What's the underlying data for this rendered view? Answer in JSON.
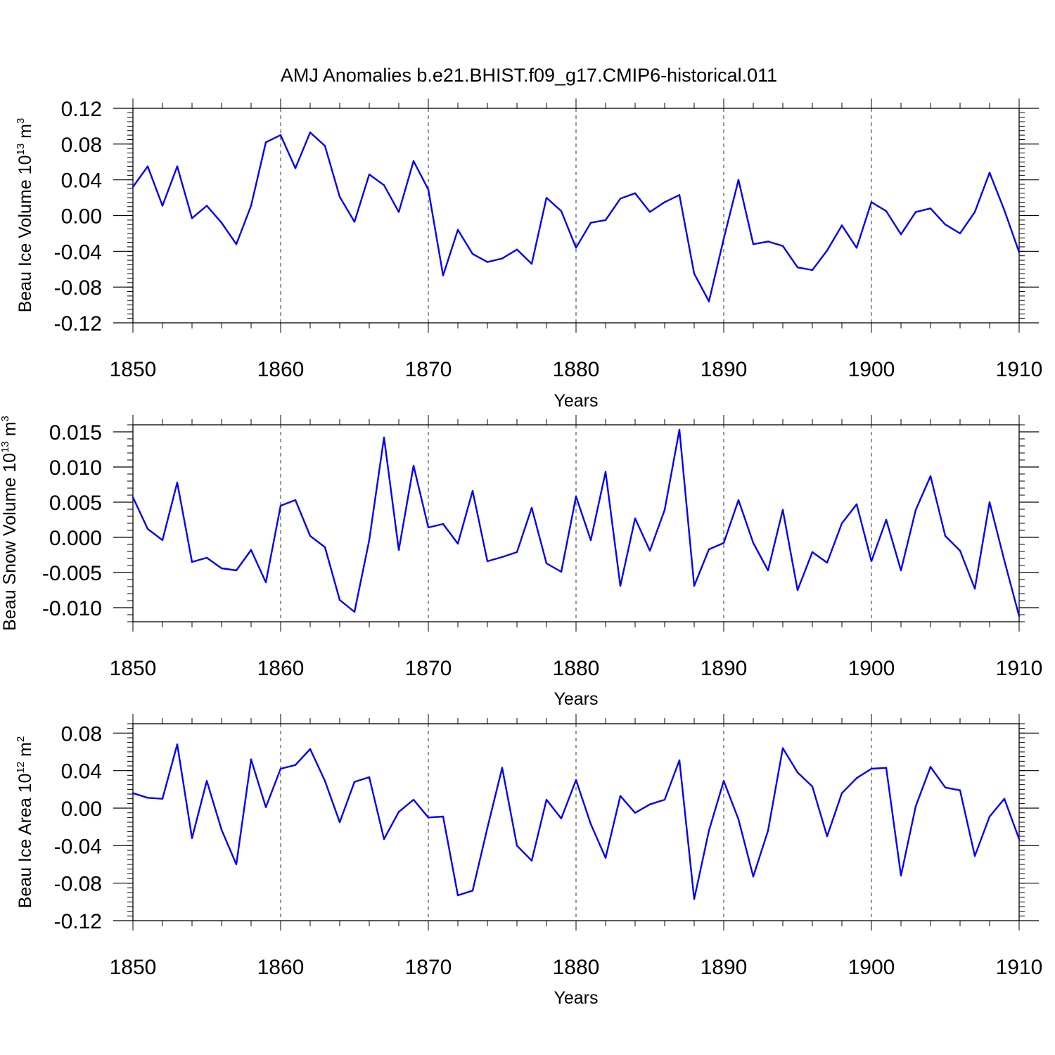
{
  "title": "AMJ Anomalies b.e21.BHIST.f09_g17.CMIP6-historical.011",
  "colors": {
    "series": "#0000ff",
    "axis": "#000000",
    "grid": "#000000"
  },
  "chart_data": [
    {
      "type": "line",
      "grid": "vertical dashed at major x ticks",
      "xlabel": "Years",
      "ylabel": {
        "main": "Beau Ice Volume 10",
        "exponent": "13",
        "unit": "m",
        "unit_exponent": "3"
      },
      "xlim": [
        1850,
        1910
      ],
      "ylim": [
        -0.12,
        0.12
      ],
      "x_ticks": [
        "1850",
        "1860",
        "1870",
        "1880",
        "1890",
        "1900",
        "1910"
      ],
      "y_ticks": [
        "0.12",
        "0.08",
        "0.04",
        "0.00",
        "-0.04",
        "-0.08",
        "-0.12"
      ],
      "y_tick_values": [
        0.12,
        0.08,
        0.04,
        0.0,
        -0.04,
        -0.08,
        -0.12
      ],
      "x": [
        1850,
        1851,
        1852,
        1853,
        1854,
        1855,
        1856,
        1857,
        1858,
        1859,
        1860,
        1861,
        1862,
        1863,
        1864,
        1865,
        1866,
        1867,
        1868,
        1869,
        1870,
        1871,
        1872,
        1873,
        1874,
        1875,
        1876,
        1877,
        1878,
        1879,
        1880,
        1881,
        1882,
        1883,
        1884,
        1885,
        1886,
        1887,
        1888,
        1889,
        1890,
        1891,
        1892,
        1893,
        1894,
        1895,
        1896,
        1897,
        1898,
        1899,
        1900,
        1901,
        1902,
        1903,
        1904,
        1905,
        1906,
        1907,
        1908,
        1909,
        1910
      ],
      "values": [
        0.032,
        0.055,
        0.011,
        0.055,
        -0.003,
        0.011,
        -0.008,
        -0.032,
        0.011,
        0.082,
        0.09,
        0.053,
        0.093,
        0.078,
        0.021,
        -0.007,
        0.046,
        0.034,
        0.004,
        0.061,
        0.029,
        -0.067,
        -0.016,
        -0.043,
        -0.052,
        -0.048,
        -0.038,
        -0.054,
        0.02,
        0.005,
        -0.036,
        -0.008,
        -0.005,
        0.019,
        0.025,
        0.004,
        0.015,
        0.023,
        -0.065,
        -0.096,
        -0.026,
        0.04,
        -0.032,
        -0.029,
        -0.034,
        -0.058,
        -0.061,
        -0.039,
        -0.011,
        -0.036,
        0.015,
        0.005,
        -0.021,
        0.004,
        0.008,
        -0.01,
        -0.02,
        0.004,
        0.048,
        0.006,
        -0.041
      ]
    },
    {
      "type": "line",
      "grid": "vertical dashed at major x ticks",
      "xlabel": "Years",
      "ylabel": {
        "main": "Beau Snow Volume 10",
        "exponent": "13",
        "unit": "m",
        "unit_exponent": "3"
      },
      "xlim": [
        1850,
        1910
      ],
      "ylim": [
        -0.012,
        0.016
      ],
      "x_ticks": [
        "1850",
        "1860",
        "1870",
        "1880",
        "1890",
        "1900",
        "1910"
      ],
      "y_ticks": [
        "0.015",
        "0.010",
        "0.005",
        "0.000",
        "-0.005",
        "-0.010"
      ],
      "y_tick_values": [
        0.015,
        0.01,
        0.005,
        0.0,
        -0.005,
        -0.01
      ],
      "x": [
        1850,
        1851,
        1852,
        1853,
        1854,
        1855,
        1856,
        1857,
        1858,
        1859,
        1860,
        1861,
        1862,
        1863,
        1864,
        1865,
        1866,
        1867,
        1868,
        1869,
        1870,
        1871,
        1872,
        1873,
        1874,
        1875,
        1876,
        1877,
        1878,
        1879,
        1880,
        1881,
        1882,
        1883,
        1884,
        1885,
        1886,
        1887,
        1888,
        1889,
        1890,
        1891,
        1892,
        1893,
        1894,
        1895,
        1896,
        1897,
        1898,
        1899,
        1900,
        1901,
        1902,
        1903,
        1904,
        1905,
        1906,
        1907,
        1908,
        1909,
        1910
      ],
      "values": [
        0.0057,
        0.0012,
        -0.0004,
        0.0078,
        -0.0035,
        -0.0029,
        -0.0044,
        -0.0047,
        -0.0018,
        -0.0064,
        0.0045,
        0.0053,
        0.0002,
        -0.0014,
        -0.0089,
        -0.0106,
        -0.0004,
        0.0142,
        -0.0018,
        0.0102,
        0.0014,
        0.0019,
        -0.0009,
        0.0066,
        -0.0034,
        -0.0028,
        -0.0021,
        0.0042,
        -0.0037,
        -0.0049,
        0.0058,
        -0.0004,
        0.0093,
        -0.0069,
        0.0027,
        -0.0019,
        0.0039,
        0.0153,
        -0.0069,
        -0.0017,
        -0.0008,
        0.0053,
        -0.0008,
        -0.0047,
        0.0039,
        -0.0075,
        -0.0021,
        -0.0036,
        0.002,
        0.0047,
        -0.0034,
        0.0025,
        -0.0047,
        0.0039,
        0.0087,
        0.0002,
        -0.0019,
        -0.0073,
        0.005,
        -0.0033,
        -0.0112
      ]
    },
    {
      "type": "line",
      "grid": "vertical dashed at major x ticks",
      "xlabel": "Years",
      "ylabel": {
        "main": "Beau Ice Area 10",
        "exponent": "12",
        "unit": "m",
        "unit_exponent": "2"
      },
      "xlim": [
        1850,
        1910
      ],
      "ylim": [
        -0.12,
        0.09
      ],
      "x_ticks": [
        "1850",
        "1860",
        "1870",
        "1880",
        "1890",
        "1900",
        "1910"
      ],
      "y_ticks": [
        "0.08",
        "0.04",
        "0.00",
        "-0.04",
        "-0.08",
        "-0.12"
      ],
      "y_tick_values": [
        0.08,
        0.04,
        0.0,
        -0.04,
        -0.08,
        -0.12
      ],
      "x": [
        1850,
        1851,
        1852,
        1853,
        1854,
        1855,
        1856,
        1857,
        1858,
        1859,
        1860,
        1861,
        1862,
        1863,
        1864,
        1865,
        1866,
        1867,
        1868,
        1869,
        1870,
        1871,
        1872,
        1873,
        1874,
        1875,
        1876,
        1877,
        1878,
        1879,
        1880,
        1881,
        1882,
        1883,
        1884,
        1885,
        1886,
        1887,
        1888,
        1889,
        1890,
        1891,
        1892,
        1893,
        1894,
        1895,
        1896,
        1897,
        1898,
        1899,
        1900,
        1901,
        1902,
        1903,
        1904,
        1905,
        1906,
        1907,
        1908,
        1909,
        1910
      ],
      "values": [
        0.016,
        0.011,
        0.01,
        0.068,
        -0.032,
        0.029,
        -0.023,
        -0.06,
        0.052,
        0.001,
        0.042,
        0.046,
        0.063,
        0.029,
        -0.015,
        0.028,
        0.033,
        -0.033,
        -0.004,
        0.009,
        -0.01,
        -0.009,
        -0.093,
        -0.088,
        -0.021,
        0.043,
        -0.04,
        -0.056,
        0.009,
        -0.011,
        0.03,
        -0.017,
        -0.053,
        0.013,
        -0.005,
        0.004,
        0.009,
        0.051,
        -0.097,
        -0.024,
        0.029,
        -0.012,
        -0.073,
        -0.024,
        0.064,
        0.038,
        0.023,
        -0.03,
        0.016,
        0.032,
        0.042,
        0.043,
        -0.072,
        0.002,
        0.044,
        0.022,
        0.019,
        -0.051,
        -0.009,
        0.01,
        -0.033
      ]
    }
  ]
}
